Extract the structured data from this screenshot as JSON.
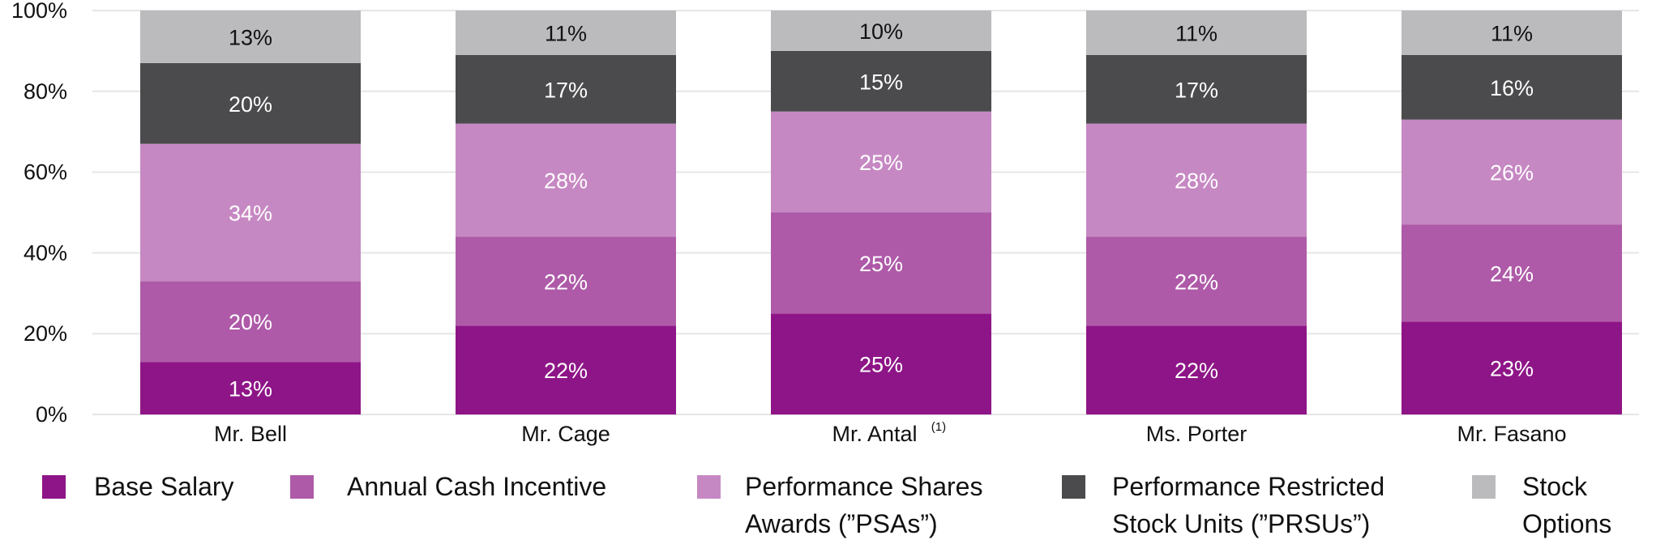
{
  "chart_data": {
    "type": "bar",
    "stacked": true,
    "categories": [
      "Mr. Bell",
      "Mr. Cage",
      "Mr. Antal",
      "Ms. Porter",
      "Mr. Fasano"
    ],
    "category_footnotes": [
      "",
      "",
      "(1)",
      "",
      ""
    ],
    "series": [
      {
        "name": "Base Salary",
        "legend_lines": [
          "Base Salary"
        ],
        "color": "#8E1587",
        "label_color": "#FFFFFF",
        "values": [
          13,
          22,
          25,
          22,
          23
        ]
      },
      {
        "name": "Annual Cash Incentive",
        "legend_lines": [
          "Annual Cash Incentive"
        ],
        "color": "#AE5AA8",
        "label_color": "#FFFFFF",
        "values": [
          20,
          22,
          25,
          22,
          24
        ]
      },
      {
        "name": "Performance Shares Awards (“PSAs”)",
        "legend_lines": [
          "Performance Shares",
          "Awards (”PSAs”)"
        ],
        "color": "#C688C3",
        "label_color": "#FFFFFF",
        "values": [
          34,
          28,
          25,
          28,
          26
        ]
      },
      {
        "name": "Performance Restricted Stock Units (“PRSUs”)",
        "legend_lines": [
          "Performance Restricted",
          "Stock Units (”PRSUs”)"
        ],
        "color": "#4B4B4D",
        "label_color": "#FFFFFF",
        "values": [
          20,
          17,
          15,
          17,
          16
        ]
      },
      {
        "name": "Stock Options",
        "legend_lines": [
          "Stock",
          "Options"
        ],
        "color": "#BBBBBE",
        "label_color": "#111111",
        "values": [
          13,
          11,
          10,
          11,
          11
        ]
      }
    ],
    "value_suffix": "%",
    "ylim": [
      0,
      100
    ],
    "yticks": [
      0,
      20,
      40,
      60,
      80,
      100
    ],
    "ytick_labels": [
      "0%",
      "20%",
      "40%",
      "60%",
      "80%",
      "100%"
    ],
    "grid": true,
    "legend_position": "bottom",
    "title": "",
    "xlabel": "",
    "ylabel": ""
  }
}
